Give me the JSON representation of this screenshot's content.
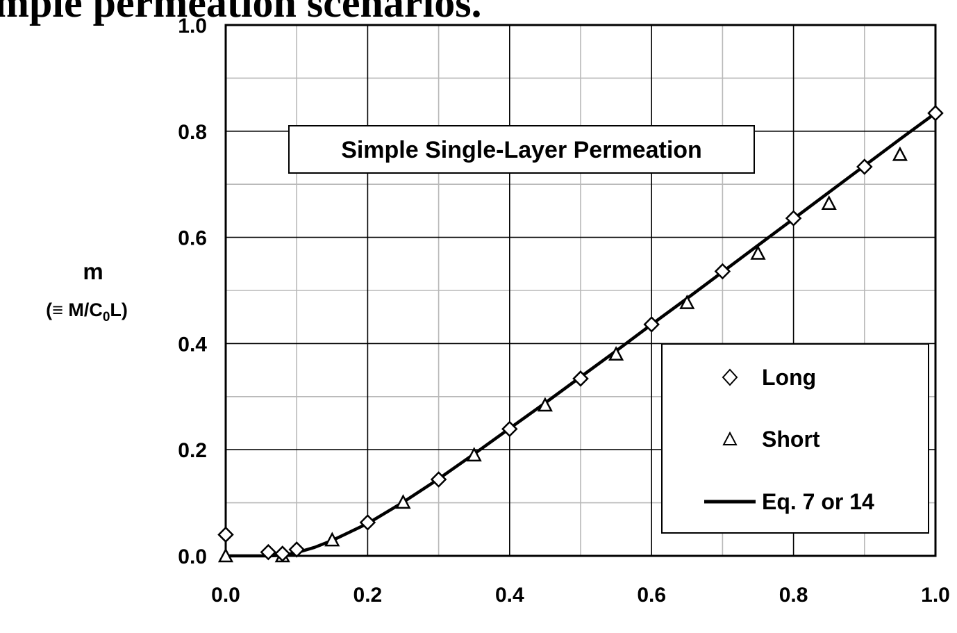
{
  "header_fragment": "mple permeation scenarios.",
  "chart_data": {
    "type": "scatter",
    "title": "Simple Single-Layer Permeation",
    "ylabel": "m",
    "ylabel_sub": "(≡ M/C0L)",
    "xlim": [
      0.0,
      1.0
    ],
    "ylim": [
      0.0,
      1.0
    ],
    "x_ticks": [
      0.0,
      0.2,
      0.4,
      0.6,
      0.8,
      1.0
    ],
    "x_tick_labels": [
      "0.0",
      "0.2",
      "0.4",
      "0.6",
      "0.8",
      "1.0"
    ],
    "y_ticks": [
      0.0,
      0.2,
      0.4,
      0.6,
      0.8,
      1.0
    ],
    "y_tick_labels": [
      "0.0",
      "0.2",
      "0.4",
      "0.6",
      "0.8",
      "1.0"
    ],
    "minor_grid": true,
    "legend_position": "bottom-right",
    "series": [
      {
        "name": "Long",
        "marker": "diamond",
        "x": [
          0.0,
          0.06,
          0.08,
          0.1,
          0.2,
          0.3,
          0.4,
          0.5,
          0.6,
          0.7,
          0.8,
          0.9,
          1.0
        ],
        "y": [
          0.04,
          0.007,
          0.004,
          0.012,
          0.063,
          0.144,
          0.239,
          0.334,
          0.436,
          0.536,
          0.636,
          0.733,
          0.834
        ]
      },
      {
        "name": "Short",
        "marker": "triangle",
        "x": [
          0.0,
          0.08,
          0.15,
          0.25,
          0.35,
          0.45,
          0.55,
          0.65,
          0.75,
          0.85,
          0.95
        ],
        "y": [
          0.0,
          0.0,
          0.03,
          0.101,
          0.19,
          0.284,
          0.38,
          0.477,
          0.57,
          0.664,
          0.756
        ]
      },
      {
        "name": "Eq. 7 or 14",
        "marker": "line",
        "x": [
          0.0,
          0.02,
          0.04,
          0.06,
          0.08,
          0.1,
          0.125,
          0.15,
          0.175,
          0.2,
          0.25,
          0.3,
          0.35,
          0.4,
          0.45,
          0.5,
          0.55,
          0.6,
          0.65,
          0.7,
          0.75,
          0.8,
          0.85,
          0.9,
          0.95,
          1.0
        ],
        "y": [
          0.0,
          0.0,
          0.0,
          0.0,
          0.001,
          0.006,
          0.016,
          0.029,
          0.045,
          0.061,
          0.101,
          0.145,
          0.192,
          0.24,
          0.288,
          0.337,
          0.386,
          0.436,
          0.485,
          0.535,
          0.585,
          0.635,
          0.685,
          0.735,
          0.785,
          0.834
        ]
      }
    ]
  }
}
